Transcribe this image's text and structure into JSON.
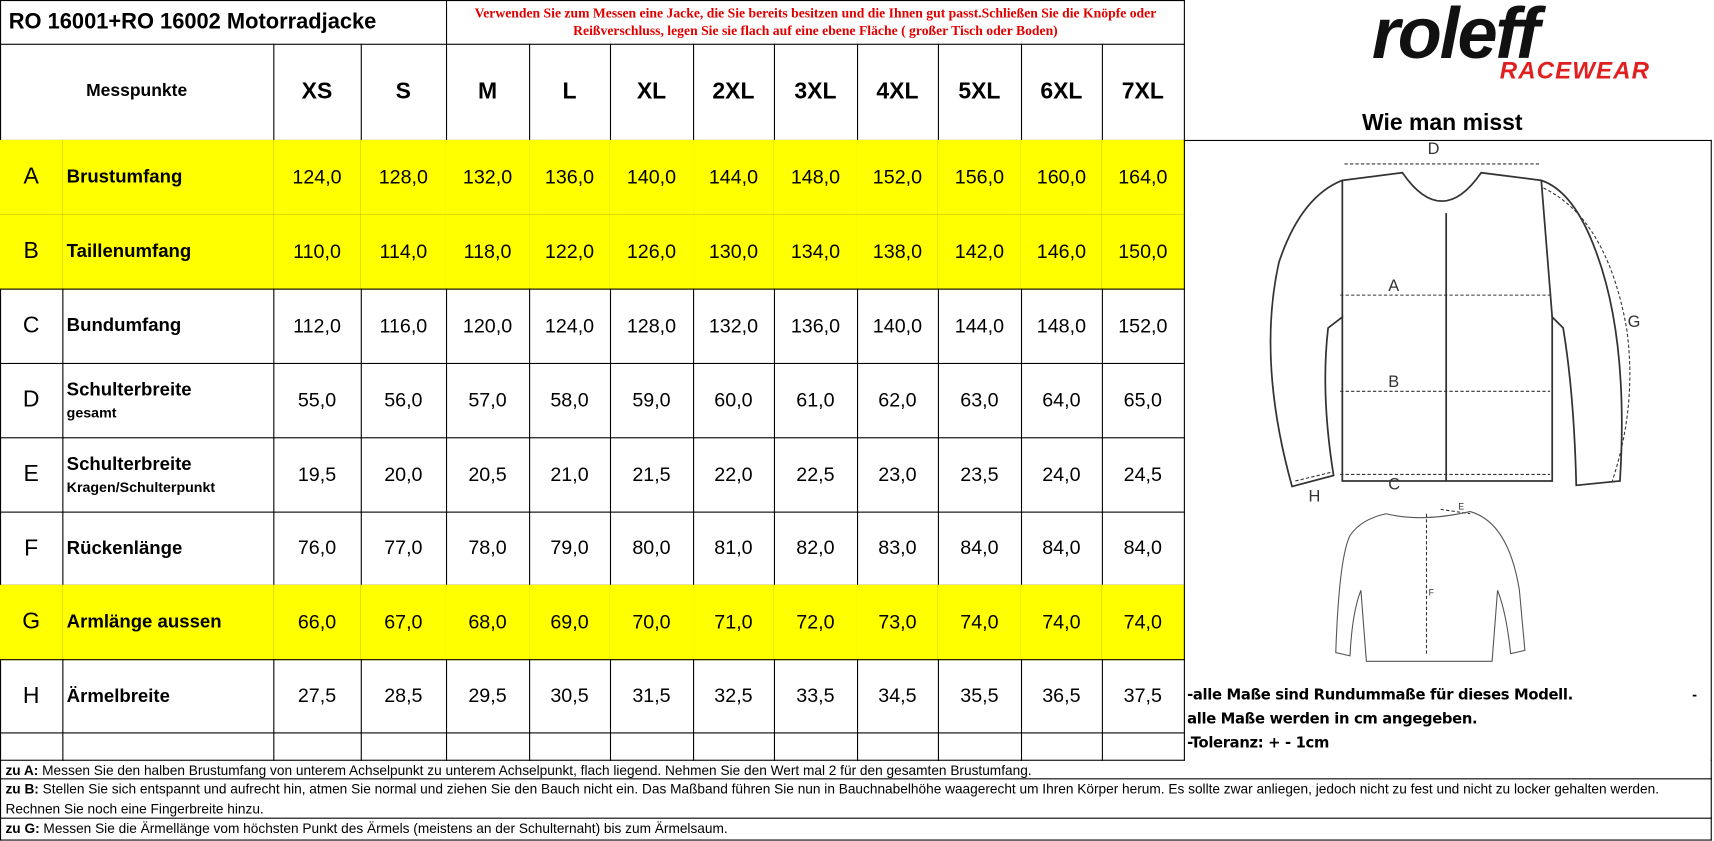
{
  "header": {
    "title": "RO 16001+RO 16002 Motorradjacke",
    "instructions": [
      "Verwenden Sie zum Messen eine Jacke, die Sie bereits besitzen und die Ihnen gut passt.Schließen Sie die Knöpfe oder",
      "Reißverschluss, legen Sie sie flach auf eine ebene Fläche ( großer Tisch oder Boden)"
    ],
    "logo": {
      "brand": "roleff",
      "tagline": "RACEWEAR"
    }
  },
  "table": {
    "header": {
      "label": "Messpunkte",
      "sizes": [
        "XS",
        "S",
        "M",
        "L",
        "XL",
        "2XL",
        "3XL",
        "4XL",
        "5XL",
        "6XL",
        "7XL"
      ]
    },
    "rows": [
      {
        "letter": "A",
        "name": "Brustumfang",
        "fill": "#ffff00",
        "values": [
          "124,0",
          "128,0",
          "132,0",
          "136,0",
          "140,0",
          "144,0",
          "148,0",
          "152,0",
          "156,0",
          "160,0",
          "164,0"
        ]
      },
      {
        "letter": "B",
        "name": "Taillenumfang",
        "fill": "#ffff00",
        "values": [
          "110,0",
          "114,0",
          "118,0",
          "122,0",
          "126,0",
          "130,0",
          "134,0",
          "138,0",
          "142,0",
          "146,0",
          "150,0"
        ]
      },
      {
        "letter": "C",
        "name": "Bundumfang",
        "values": [
          "112,0",
          "116,0",
          "120,0",
          "124,0",
          "128,0",
          "132,0",
          "136,0",
          "140,0",
          "144,0",
          "148,0",
          "152,0"
        ]
      },
      {
        "letter": "D",
        "name": "Schulterbreite",
        "note": "gesamt",
        "values": [
          "55,0",
          "56,0",
          "57,0",
          "58,0",
          "59,0",
          "60,0",
          "61,0",
          "62,0",
          "63,0",
          "64,0",
          "65,0"
        ]
      },
      {
        "letter": "E",
        "name": "Schulterbreite",
        "note": "Kragen/Schulterpunkt",
        "values": [
          "19,5",
          "20,0",
          "20,5",
          "21,0",
          "21,5",
          "22,0",
          "22,5",
          "23,0",
          "23,5",
          "24,0",
          "24,5"
        ]
      },
      {
        "letter": "F",
        "name": "Rückenlänge",
        "values": [
          "76,0",
          "77,0",
          "78,0",
          "79,0",
          "80,0",
          "81,0",
          "82,0",
          "83,0",
          "84,0",
          "84,0",
          "84,0"
        ]
      },
      {
        "letter": "G",
        "name": "Armlänge aussen",
        "fill": "#ffff00",
        "values": [
          "66,0",
          "67,0",
          "68,0",
          "69,0",
          "70,0",
          "71,0",
          "72,0",
          "73,0",
          "74,0",
          "74,0",
          "74,0"
        ]
      },
      {
        "letter": "H",
        "name": "Ärmelbreite",
        "values": [
          "27,5",
          "28,5",
          "29,5",
          "30,5",
          "31,5",
          "32,5",
          "33,5",
          "34,5",
          "35,5",
          "36,5",
          "37,5"
        ]
      }
    ]
  },
  "diagram": {
    "title": "Wie man misst",
    "labels": {
      "D": "D",
      "A": "A",
      "B": "B",
      "C": "C",
      "G": "G",
      "H": "H",
      "E": "E",
      "F": "F"
    }
  },
  "side_notes": [
    "-alle Maße sind Rundummaße für dieses Modell.",
    "alle Maße werden in cm angegeben.",
    "-Toleranz: + -  1cm"
  ],
  "side_dash": "-",
  "notes": [
    {
      "label": "zu A:",
      "text": "Messen Sie den halben Brustumfang von unterem Achselpunkt zu unterem Achselpunkt, flach liegend. Nehmen Sie den Wert mal 2 für den gesamten Brustumfang."
    },
    {
      "label": "zu B:",
      "text": "Stellen Sie sich entspannt und aufrecht hin, atmen Sie normal und ziehen Sie den Bauch nicht ein. Das Maßband führen Sie nun in Bauchnabelhöhe waagerecht um Ihren Körper herum. Es sollte zwar anliegen, jedoch nicht zu fest und nicht zu locker gehalten werden. Rechnen Sie noch eine Fingerbreite hinzu."
    },
    {
      "label": "zu G:",
      "text": "Messen Sie die Ärmellänge vom höchsten Punkt des Ärmels (meistens an der Schulternaht) bis zum Ärmelsaum."
    }
  ]
}
